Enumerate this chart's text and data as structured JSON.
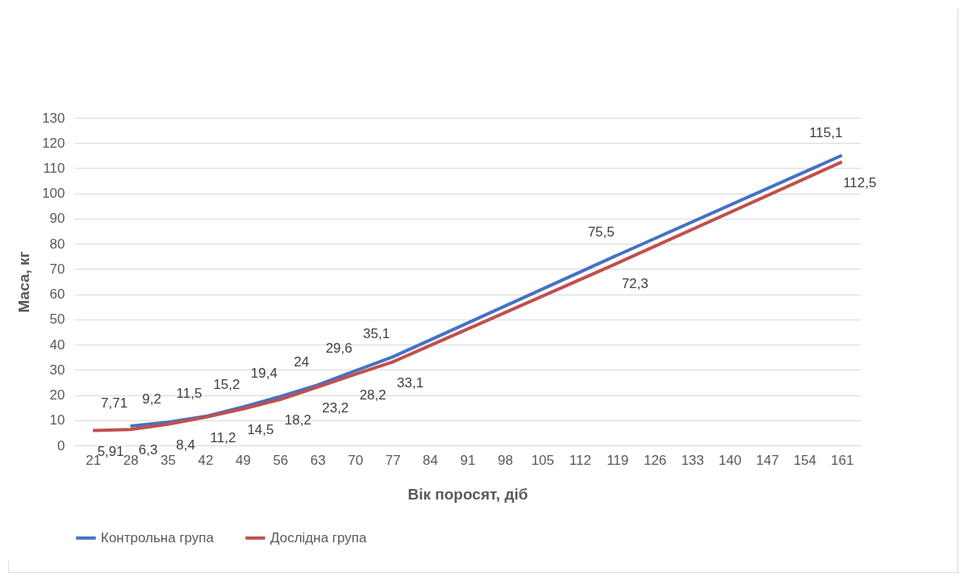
{
  "chart_data": {
    "type": "line",
    "xlabel": "Вік поросят, діб",
    "ylabel": "Маса, кг",
    "categories": [
      "21",
      "28",
      "35",
      "42",
      "49",
      "56",
      "63",
      "70",
      "77",
      "84",
      "91",
      "98",
      "105",
      "112",
      "119",
      "126",
      "133",
      "140",
      "147",
      "154",
      "161"
    ],
    "series": [
      {
        "name": "Контрольна група",
        "color": "#4472c4",
        "values": [
          null,
          7.71,
          9.2,
          11.5,
          15.2,
          19.4,
          24,
          29.6,
          35.1,
          null,
          null,
          null,
          null,
          null,
          75.5,
          null,
          null,
          null,
          null,
          null,
          115.1
        ],
        "value_labels": [
          null,
          "7,71",
          "9,2",
          "11,5",
          "15,2",
          "19,4",
          "24",
          "29,6",
          "35,1",
          null,
          null,
          null,
          null,
          null,
          "75,5",
          null,
          null,
          null,
          null,
          null,
          "115,1"
        ]
      },
      {
        "name": "Дослідна група",
        "color": "#c0504d",
        "values": [
          5.91,
          6.3,
          8.4,
          11.2,
          14.5,
          18.2,
          23.2,
          28.2,
          33.1,
          null,
          null,
          null,
          null,
          null,
          72.3,
          null,
          null,
          null,
          null,
          null,
          112.5
        ],
        "value_labels": [
          "5,91",
          "6,3",
          "8,4",
          "11,2",
          "14,5",
          "18,2",
          "23,2",
          "28,2",
          "33,1",
          null,
          null,
          null,
          null,
          null,
          "72,3",
          null,
          null,
          null,
          null,
          null,
          "112,5"
        ]
      }
    ],
    "ylim": [
      0,
      130
    ],
    "yticks": [
      0,
      10,
      20,
      30,
      40,
      50,
      60,
      70,
      80,
      90,
      100,
      110,
      120,
      130
    ],
    "grid": "y",
    "legend": "bottom",
    "marker": "none",
    "line_style": "solid"
  }
}
